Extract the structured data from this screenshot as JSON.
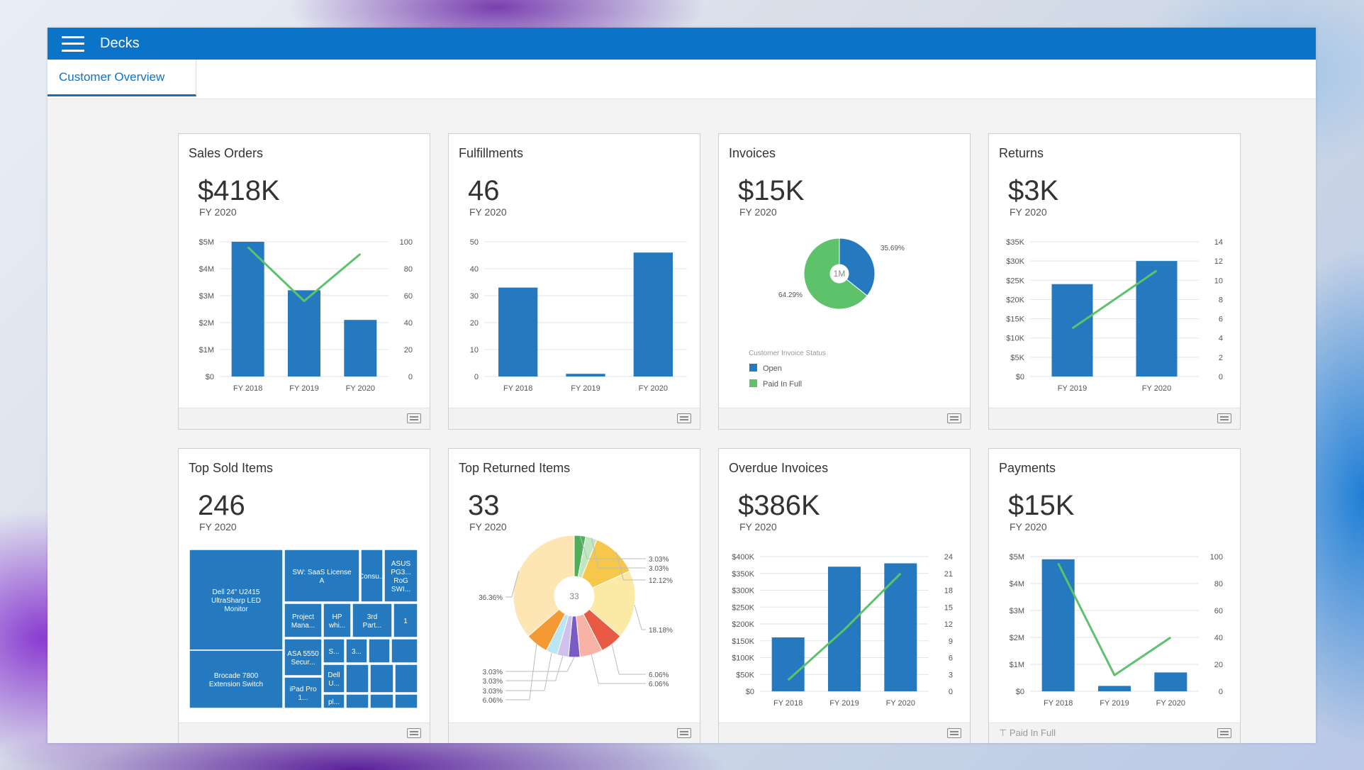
{
  "app": {
    "title": "Decks"
  },
  "tabs": [
    {
      "label": "Customer Overview"
    }
  ],
  "colors": {
    "brand": "#0b74c9",
    "bar": "#2479bf",
    "line": "#5dc26a"
  },
  "cards": [
    {
      "title": "Sales Orders",
      "value": "$418K",
      "sub": "FY 2020",
      "chart_data": {
        "type": "bar",
        "categories": [
          "FY 2018",
          "FY 2019",
          "FY 2020"
        ],
        "values": [
          5.0,
          3.2,
          2.1
        ],
        "line": [
          96,
          56,
          91
        ],
        "yticks": [
          "$0",
          "$1M",
          "$2M",
          "$3M",
          "$4M",
          "$5M"
        ],
        "ylim": [
          0,
          5
        ],
        "y2ticks": [
          "0",
          "20",
          "40",
          "60",
          "80",
          "100"
        ],
        "y2lim": [
          0,
          100
        ]
      }
    },
    {
      "title": "Fulfillments",
      "value": "46",
      "sub": "FY 2020",
      "chart_data": {
        "type": "bar",
        "categories": [
          "FY 2018",
          "FY 2019",
          "FY 2020"
        ],
        "values": [
          33,
          1,
          46
        ],
        "yticks": [
          "0",
          "10",
          "20",
          "30",
          "40",
          "50"
        ],
        "ylim": [
          0,
          50
        ]
      }
    },
    {
      "title": "Invoices",
      "value": "$15K",
      "sub": "FY 2020",
      "chart_data": {
        "type": "pie",
        "center_label": "1M",
        "slices": [
          {
            "label": "35.69%",
            "value": 35.69,
            "color": "#2479bf"
          },
          {
            "label": "64.29%",
            "value": 64.29,
            "color": "#5dc26a"
          }
        ],
        "legend_title": "Customer Invoice Status",
        "legend": [
          {
            "label": "Open",
            "color": "#2479bf"
          },
          {
            "label": "Paid In Full",
            "color": "#5dc26a"
          }
        ]
      }
    },
    {
      "title": "Returns",
      "value": "$3K",
      "sub": "FY 2020",
      "chart_data": {
        "type": "bar",
        "categories": [
          "FY 2019",
          "FY 2020"
        ],
        "values": [
          24,
          30
        ],
        "line": [
          5,
          11
        ],
        "yticks": [
          "$0",
          "$5K",
          "$10K",
          "$15K",
          "$20K",
          "$25K",
          "$30K",
          "$35K"
        ],
        "ylim": [
          0,
          35
        ],
        "y2ticks": [
          "0",
          "2",
          "4",
          "6",
          "8",
          "10",
          "12",
          "14"
        ],
        "y2lim": [
          0,
          14
        ]
      }
    },
    {
      "title": "Top Sold Items",
      "value": "246",
      "sub": "FY 2020",
      "chart_data": {
        "type": "treemap",
        "labels": [
          "Dell 24\" U2415 UltraSharp LED Monitor",
          "Brocade 7800 Extension Switch",
          "SW: SaaS License A",
          "Consu...",
          "ASUS PG3... RoG SWI...",
          "Project Mana...",
          "HP whi...",
          "3rd Part...",
          "1",
          "ASA 5550 Secur...",
          "S...",
          "3...",
          "iPad Pro 1...",
          "Dell U...",
          "pl...",
          "..."
        ]
      }
    },
    {
      "title": "Top Returned Items",
      "value": "33",
      "sub": "FY 2020",
      "chart_data": {
        "type": "pie",
        "center_label": "33",
        "slices": [
          {
            "label": "3.03%",
            "value": 3.03,
            "color": "#4faf59"
          },
          {
            "label": "3.03%",
            "value": 3.03,
            "color": "#bfe7c2"
          },
          {
            "label": "12.12%",
            "value": 12.12,
            "color": "#f5c84b"
          },
          {
            "label": "18.18%",
            "value": 18.18,
            "color": "#fbe9a6"
          },
          {
            "label": "6.06%",
            "value": 6.06,
            "color": "#e85a43"
          },
          {
            "label": "6.06%",
            "value": 6.06,
            "color": "#f7b3a5"
          },
          {
            "label": "3.03%",
            "value": 3.03,
            "color": "#7a5bc4"
          },
          {
            "label": "3.03%",
            "value": 3.03,
            "color": "#cfc0ee"
          },
          {
            "label": "3.03%",
            "value": 3.03,
            "color": "#b9e6f0"
          },
          {
            "label": "6.06%",
            "value": 6.06,
            "color": "#f39a34"
          },
          {
            "label": "36.36%",
            "value": 36.36,
            "color": "#fde6b4"
          }
        ]
      }
    },
    {
      "title": "Overdue Invoices",
      "value": "$386K",
      "sub": "FY 2020",
      "chart_data": {
        "type": "bar",
        "categories": [
          "FY 2018",
          "FY 2019",
          "FY 2020"
        ],
        "values": [
          160,
          370,
          380
        ],
        "line": [
          2,
          11,
          21
        ],
        "yticks": [
          "$0",
          "$50K",
          "$100K",
          "$150K",
          "$200K",
          "$250K",
          "$300K",
          "$350K",
          "$400K"
        ],
        "ylim": [
          0,
          400
        ],
        "y2ticks": [
          "0",
          "3",
          "6",
          "9",
          "12",
          "15",
          "18",
          "21",
          "24"
        ],
        "y2lim": [
          0,
          24
        ]
      }
    },
    {
      "title": "Payments",
      "value": "$15K",
      "sub": "FY 2020",
      "footer_note": "⊤ Paid In Full",
      "chart_data": {
        "type": "bar",
        "categories": [
          "FY 2018",
          "FY 2019",
          "FY 2020"
        ],
        "values": [
          4.9,
          0.2,
          0.7
        ],
        "line": [
          95,
          12,
          40
        ],
        "yticks": [
          "$0",
          "$1M",
          "$2M",
          "$3M",
          "$4M",
          "$5M"
        ],
        "ylim": [
          0,
          5
        ],
        "y2ticks": [
          "0",
          "20",
          "40",
          "60",
          "80",
          "100"
        ],
        "y2lim": [
          0,
          100
        ]
      }
    }
  ]
}
